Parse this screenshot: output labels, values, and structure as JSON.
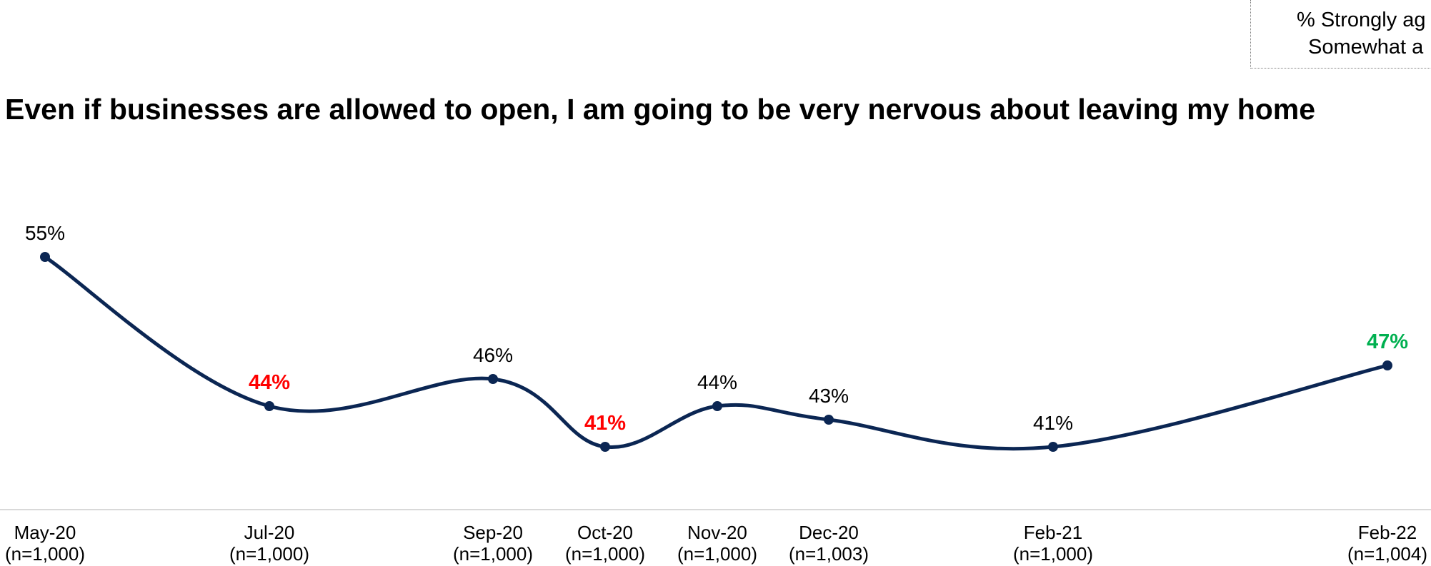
{
  "legend": {
    "line1": "% Strongly ag",
    "line2": "Somewhat a"
  },
  "chart_data": {
    "type": "line",
    "title": "Even if businesses are allowed to open, I am going to be very nervous about leaving my home",
    "categories": [
      "May-20",
      "Jul-20",
      "Sep-20",
      "Oct-20",
      "Nov-20",
      "Dec-20",
      "Feb-21",
      "Feb-22"
    ],
    "sample_sizes": [
      "(n=1,000)",
      "(n=1,000)",
      "(n=1,000)",
      "(n=1,000)",
      "(n=1,000)",
      "(n=1,003)",
      "(n=1,000)",
      "(n=1,004)"
    ],
    "series": [
      {
        "values": [
          55,
          44,
          46,
          41,
          44,
          43,
          41,
          47
        ],
        "labels": [
          "55%",
          "44%",
          "46%",
          "41%",
          "44%",
          "43%",
          "41%",
          "47%"
        ],
        "label_colors": [
          "#000000",
          "#ff0000",
          "#000000",
          "#ff0000",
          "#000000",
          "#000000",
          "#000000",
          "#00b050"
        ],
        "label_bold": [
          false,
          true,
          false,
          true,
          false,
          false,
          false,
          true
        ]
      }
    ],
    "line_color": "#0b2653",
    "axis_line_color": "#d9d9d9",
    "smoothed": true,
    "grid": false
  }
}
